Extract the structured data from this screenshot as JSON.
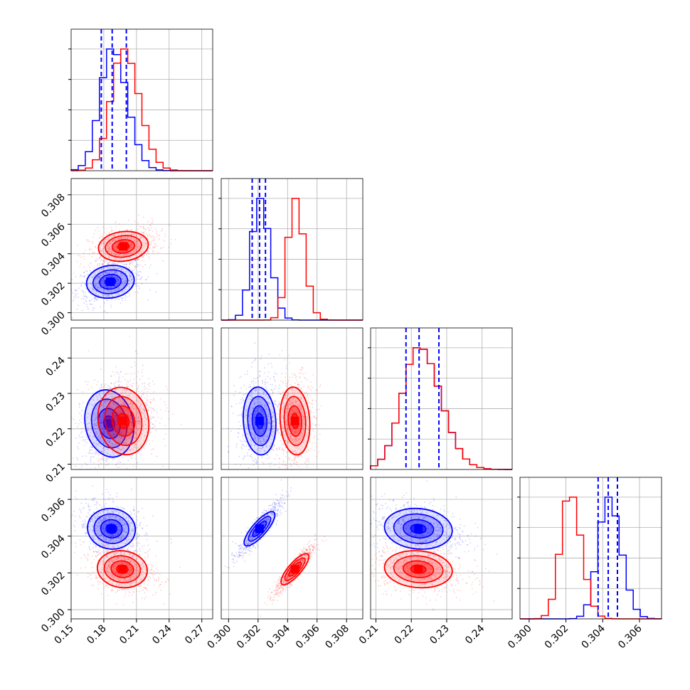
{
  "chart_data": {
    "type": "corner",
    "series": [
      {
        "name": "",
        "color": "#0000ff",
        "mean": [
          0.1875,
          0.3021,
          0.2222,
          0.3043
        ],
        "sd": [
          0.011,
          0.00055,
          0.0048,
          0.00055
        ],
        "quantiles": [
          [
            0.1777,
            0.1877,
            0.2007
          ],
          [
            0.3016,
            0.3021,
            0.3025
          ],
          [
            0.2185,
            0.2222,
            0.2278
          ],
          [
            0.30375,
            0.3043,
            0.3048
          ]
        ]
      },
      {
        "name": "",
        "color": "#ff0000",
        "mean": [
          0.198,
          0.3045,
          0.2222,
          0.3022
        ],
        "sd": [
          0.0115,
          0.0005,
          0.0048,
          0.0005
        ]
      }
    ],
    "pairs": [
      {
        "xvar": 0,
        "yvar": 1,
        "centers": [
          [
            0.186,
            0.3021
          ],
          [
            0.198,
            0.3045
          ]
        ]
      },
      {
        "xvar": 0,
        "yvar": 2,
        "centers": [
          [
            0.185,
            0.2215
          ],
          [
            0.198,
            0.2222
          ]
        ]
      },
      {
        "xvar": 1,
        "yvar": 2,
        "centers": [
          [
            0.3021,
            0.2222
          ],
          [
            0.3045,
            0.2222
          ]
        ]
      },
      {
        "xvar": 0,
        "yvar": 3,
        "centers": [
          [
            0.187,
            0.3044
          ],
          [
            0.197,
            0.3022
          ]
        ]
      },
      {
        "xvar": 1,
        "yvar": 3,
        "centers": [
          [
            0.3021,
            0.3044
          ],
          [
            0.3045,
            0.3022
          ]
        ]
      },
      {
        "xvar": 2,
        "yvar": 3,
        "centers": [
          [
            0.222,
            0.3044
          ],
          [
            0.222,
            0.3022
          ]
        ]
      }
    ],
    "axes": [
      {
        "range": [
          0.15,
          0.28
        ],
        "ticks": [
          "0.15",
          "0.18",
          "0.21",
          "0.24",
          "0.27"
        ],
        "tick_values": [
          0.15,
          0.18,
          0.21,
          0.24,
          0.27
        ]
      },
      {
        "range": [
          0.2995,
          0.3091
        ],
        "ticks": [
          "0.300",
          "0.302",
          "0.304",
          "0.306",
          "0.308"
        ],
        "tick_values": [
          0.3,
          0.302,
          0.304,
          0.306,
          0.308
        ]
      },
      {
        "range": [
          0.2085,
          0.2485
        ],
        "ticks": [
          "0.21",
          "0.22",
          "0.23",
          "0.24"
        ],
        "tick_values": [
          0.21,
          0.22,
          0.23,
          0.24
        ]
      },
      {
        "range": [
          0.2995,
          0.3072
        ],
        "ticks": [
          "0.300",
          "0.302",
          "0.304",
          "0.306"
        ],
        "tick_values": [
          0.3,
          0.302,
          0.304,
          0.306
        ]
      }
    ],
    "y_tick_axes": {
      "row1": {
        "ticks": [
          "0.300",
          "0.302",
          "0.304",
          "0.306",
          "0.308"
        ],
        "tick_values": [
          0.3,
          0.302,
          0.304,
          0.306,
          0.308
        ]
      },
      "row2": {
        "ticks": [
          "0.21",
          "0.22",
          "0.23",
          "0.24"
        ],
        "tick_values": [
          0.21,
          0.22,
          0.23,
          0.24
        ]
      },
      "row3": {
        "ticks": [
          "0.300",
          "0.302",
          "0.304",
          "0.306"
        ],
        "tick_values": [
          0.3,
          0.302,
          0.304,
          0.306
        ]
      }
    },
    "grid": true,
    "title": "",
    "xlabel": "",
    "ylabel": ""
  }
}
